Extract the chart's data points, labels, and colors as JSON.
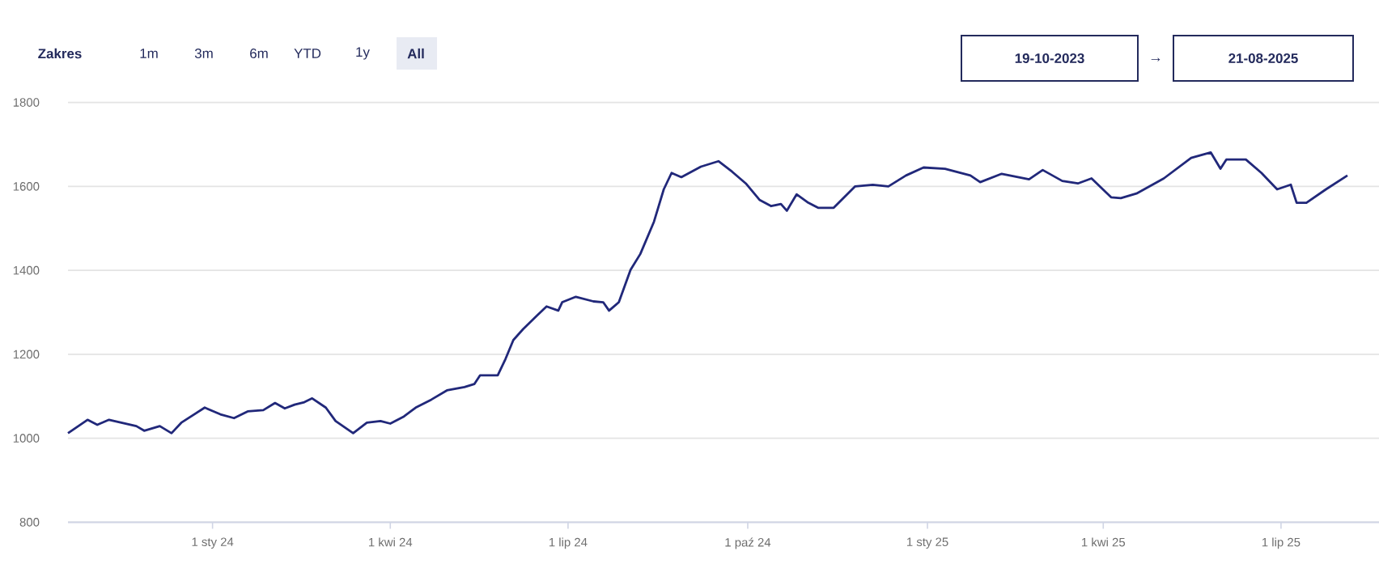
{
  "chart_data": {
    "type": "line",
    "xlim": [
      "2023-10-19",
      "2025-08-21"
    ],
    "ylim": [
      800,
      1800
    ],
    "yticks": [
      800,
      1000,
      1200,
      1400,
      1600,
      1800
    ],
    "xticks": [
      {
        "value": "2024-01-01",
        "label": "1 sty 24"
      },
      {
        "value": "2024-04-01",
        "label": "1 kwi 24"
      },
      {
        "value": "2024-07-01",
        "label": "1 lip 24"
      },
      {
        "value": "2024-10-01",
        "label": "1 paź 24"
      },
      {
        "value": "2025-01-01",
        "label": "1 sty 25"
      },
      {
        "value": "2025-04-01",
        "label": "1 kwi 25"
      },
      {
        "value": "2025-07-01",
        "label": "1 lip 25"
      }
    ],
    "grid": "y",
    "marker": "none",
    "line_style": "solid",
    "annotations": [
      "Zakres",
      "1m",
      "3m",
      "6m",
      "YTD",
      "1y",
      "All",
      "19-10-2023",
      "→",
      "21-08-2025"
    ],
    "x": [
      "2023-10-19",
      "2023-10-29",
      "2023-11-03",
      "2023-11-09",
      "2023-11-23",
      "2023-11-27",
      "2023-12-05",
      "2023-12-11",
      "2023-12-16",
      "2023-12-28",
      "2024-01-05",
      "2024-01-12",
      "2024-01-19",
      "2024-01-27",
      "2024-02-02",
      "2024-02-07",
      "2024-02-12",
      "2024-02-17",
      "2024-02-21",
      "2024-02-28",
      "2024-03-04",
      "2024-03-13",
      "2024-03-20",
      "2024-03-27",
      "2024-04-01",
      "2024-04-08",
      "2024-04-14",
      "2024-04-22",
      "2024-04-30",
      "2024-05-09",
      "2024-05-14",
      "2024-05-17",
      "2024-05-26",
      "2024-05-30",
      "2024-06-03",
      "2024-06-08",
      "2024-06-15",
      "2024-06-20",
      "2024-06-26",
      "2024-06-28",
      "2024-07-05",
      "2024-07-14",
      "2024-07-19",
      "2024-07-22",
      "2024-07-27",
      "2024-08-02",
      "2024-08-07",
      "2024-08-14",
      "2024-08-19",
      "2024-08-23",
      "2024-08-28",
      "2024-09-07",
      "2024-09-16",
      "2024-09-23",
      "2024-09-30",
      "2024-10-07",
      "2024-10-13",
      "2024-10-18",
      "2024-10-21",
      "2024-10-26",
      "2024-11-01",
      "2024-11-06",
      "2024-11-14",
      "2024-11-25",
      "2024-12-04",
      "2024-12-12",
      "2024-12-21",
      "2024-12-30",
      "2025-01-10",
      "2025-01-23",
      "2025-01-28",
      "2025-02-08",
      "2025-02-22",
      "2025-03-01",
      "2025-03-11",
      "2025-03-19",
      "2025-03-26",
      "2025-04-05",
      "2025-04-10",
      "2025-04-18",
      "2025-05-02",
      "2025-05-16",
      "2025-05-26",
      "2025-05-31",
      "2025-06-03",
      "2025-06-13",
      "2025-06-21",
      "2025-06-29",
      "2025-07-06",
      "2025-07-09",
      "2025-07-14",
      "2025-07-24",
      "2025-08-04"
    ],
    "series": [
      {
        "color": "#21287a",
        "values": [
          1012,
          1044,
          1032,
          1044,
          1029,
          1018,
          1029,
          1012,
          1037,
          1073,
          1057,
          1048,
          1064,
          1067,
          1084,
          1071,
          1080,
          1086,
          1095,
          1073,
          1041,
          1012,
          1037,
          1041,
          1035,
          1052,
          1073,
          1092,
          1114,
          1122,
          1129,
          1150,
          1150,
          1189,
          1234,
          1260,
          1292,
          1314,
          1304,
          1324,
          1337,
          1326,
          1324,
          1304,
          1324,
          1401,
          1439,
          1516,
          1593,
          1632,
          1622,
          1647,
          1660,
          1635,
          1607,
          1568,
          1553,
          1558,
          1542,
          1581,
          1561,
          1549,
          1549,
          1600,
          1604,
          1600,
          1626,
          1645,
          1642,
          1626,
          1610,
          1630,
          1617,
          1639,
          1613,
          1607,
          1619,
          1574,
          1572,
          1583,
          1619,
          1668,
          1681,
          1642,
          1664,
          1664,
          1632,
          1593,
          1604,
          1561,
          1561,
          1593,
          1626
        ]
      }
    ]
  }
}
